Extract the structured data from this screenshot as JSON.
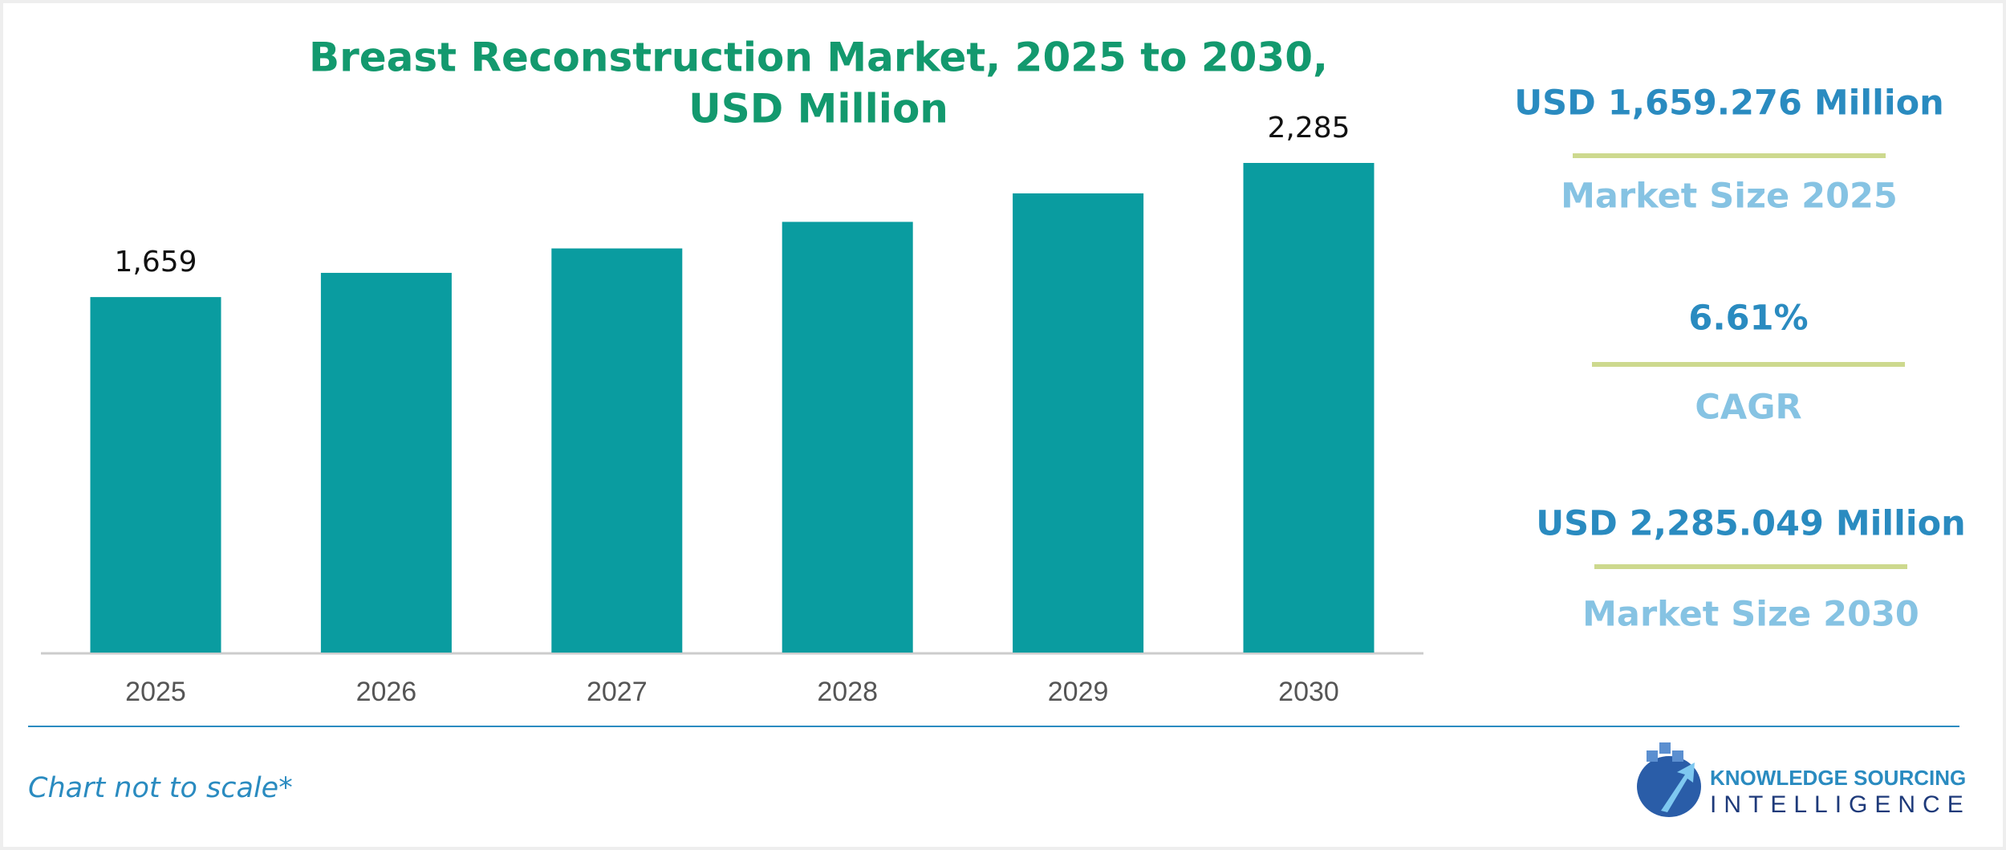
{
  "chart_data": {
    "type": "bar",
    "title": "Breast Reconstruction Market, 2025 to 2030,",
    "subtitle": "USD Million",
    "categories": [
      "2025",
      "2026",
      "2027",
      "2028",
      "2029",
      "2030"
    ],
    "values": [
      1659,
      1772,
      1886,
      2010,
      2143,
      2285
    ],
    "value_labels": [
      "1,659",
      null,
      null,
      null,
      null,
      "2,285"
    ],
    "color": "#0a9ca0",
    "side_panel": [
      {
        "value": "USD 1,659.276 Million",
        "label": "Market Size 2025"
      },
      {
        "value": "6.61%",
        "label": "CAGR"
      },
      {
        "value": "USD 2,285.049 Million",
        "label": "Market Size 2030"
      }
    ],
    "footnote": "Chart not to scale*",
    "logo": {
      "line1": "KNOWLEDGE SOURCING",
      "line2": "INTELLIGENCE"
    }
  }
}
